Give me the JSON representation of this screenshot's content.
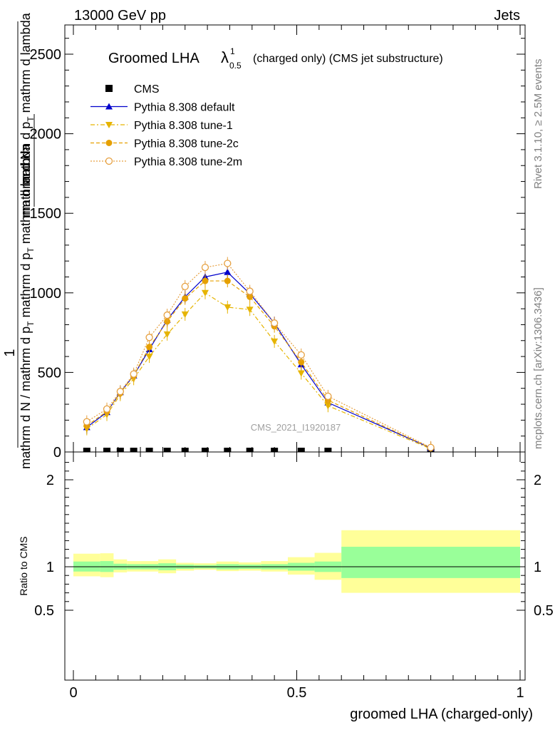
{
  "header": {
    "energy_label": "13000 GeV pp",
    "category_label": "Jets"
  },
  "side_labels": {
    "rivet": "Rivet 3.1.10, ≥ 2.5M events",
    "mcplots": "mcplots.cern.ch [arXiv:1306.3436]"
  },
  "chart_data": [
    {
      "type": "scatter",
      "title_prefix": "Groomed LHA",
      "title_lambda": "λ",
      "title_sup": "1",
      "title_sub": "0.5",
      "title_suffix": "(charged only) (CMS jet substructure)",
      "ylabel_parts": {
        "one": "1",
        "num_top": "mathrm d",
        "num_top2": "N",
        "den_top": "mathrm d p",
        "den_top_sub": "T",
        "den_top2": " mathrm d lambda",
        "num_bottom": "mathrm d N / mathrm d p",
        "num_bottom_sub": "T",
        "num_bottom2": " mathrm d p",
        "num_bottom_sub2": "T",
        "num_bottom3": " mathrm d lambda"
      },
      "watermark": "CMS_2021_I1920187",
      "xlim": [
        0,
        1
      ],
      "ylim": [
        0,
        2700
      ],
      "yticks": [
        0,
        500,
        1000,
        1500,
        2000,
        2500
      ],
      "yticks_labels": [
        "0",
        "500",
        "1000",
        "1500",
        "2000",
        "2500"
      ],
      "legend_position": "top-left",
      "x": [
        0.03,
        0.075,
        0.105,
        0.135,
        0.17,
        0.21,
        0.25,
        0.295,
        0.345,
        0.395,
        0.45,
        0.51,
        0.57,
        0.8
      ],
      "series": [
        {
          "name": "CMS",
          "color": "#000000",
          "marker": "square",
          "values": [
            0,
            0,
            0,
            0,
            0,
            0,
            0,
            0,
            0,
            0,
            0,
            0,
            0,
            0
          ]
        },
        {
          "name": "Pythia 8.308 default",
          "color": "#0000cc",
          "marker": "triangle-up",
          "line": "solid",
          "values": [
            155,
            250,
            375,
            480,
            645,
            830,
            975,
            1100,
            1130,
            995,
            810,
            550,
            310,
            25
          ]
        },
        {
          "name": "Pythia 8.308 tune-1",
          "color": "#e6b400",
          "marker": "triangle-down",
          "line": "dashdot",
          "values": [
            145,
            235,
            360,
            460,
            600,
            740,
            865,
            1000,
            910,
            895,
            695,
            495,
            290,
            20
          ]
        },
        {
          "name": "Pythia 8.308 tune-2c",
          "color": "#e6a000",
          "marker": "circle",
          "line": "dashed",
          "values": [
            165,
            255,
            370,
            480,
            660,
            820,
            965,
            1075,
            1075,
            975,
            790,
            565,
            325,
            25
          ]
        },
        {
          "name": "Pythia 8.308 tune-2m",
          "color": "#e6a040",
          "marker": "circle-open",
          "line": "dotted",
          "values": [
            190,
            270,
            380,
            490,
            720,
            860,
            1040,
            1160,
            1185,
            1010,
            810,
            610,
            350,
            28
          ]
        }
      ]
    },
    {
      "type": "area",
      "ylabel": "Ratio to CMS",
      "xlabel": "groomed LHA (charged-only)",
      "xlim": [
        0,
        1
      ],
      "ylim": [
        0.4,
        2.3
      ],
      "xticks": [
        0,
        0.5,
        1
      ],
      "xticks_labels": [
        "0",
        "0.5",
        "1"
      ],
      "yticks": [
        0.5,
        1,
        2
      ],
      "yticks_labels": [
        "0.5",
        "1",
        "2"
      ],
      "band_colors": {
        "inner": "#99ff99",
        "outer": "#ffff99"
      },
      "bins": [
        {
          "lo": 0.0,
          "hi": 0.06,
          "inner": [
            0.945,
            1.06
          ],
          "outer": [
            0.89,
            1.15
          ]
        },
        {
          "lo": 0.06,
          "hi": 0.09,
          "inner": [
            0.94,
            1.065
          ],
          "outer": [
            0.88,
            1.155
          ]
        },
        {
          "lo": 0.09,
          "hi": 0.12,
          "inner": [
            0.965,
            1.035
          ],
          "outer": [
            0.935,
            1.085
          ]
        },
        {
          "lo": 0.12,
          "hi": 0.15,
          "inner": [
            0.97,
            1.03
          ],
          "outer": [
            0.945,
            1.065
          ]
        },
        {
          "lo": 0.15,
          "hi": 0.19,
          "inner": [
            0.97,
            1.03
          ],
          "outer": [
            0.945,
            1.065
          ]
        },
        {
          "lo": 0.19,
          "hi": 0.23,
          "inner": [
            0.96,
            1.04
          ],
          "outer": [
            0.925,
            1.085
          ]
        },
        {
          "lo": 0.23,
          "hi": 0.27,
          "inner": [
            0.975,
            1.025
          ],
          "outer": [
            0.955,
            1.045
          ]
        },
        {
          "lo": 0.27,
          "hi": 0.32,
          "inner": [
            0.98,
            1.02
          ],
          "outer": [
            0.965,
            1.04
          ]
        },
        {
          "lo": 0.32,
          "hi": 0.37,
          "inner": [
            0.97,
            1.03
          ],
          "outer": [
            0.95,
            1.06
          ]
        },
        {
          "lo": 0.37,
          "hi": 0.42,
          "inner": [
            0.975,
            1.025
          ],
          "outer": [
            0.955,
            1.05
          ]
        },
        {
          "lo": 0.42,
          "hi": 0.48,
          "inner": [
            0.97,
            1.03
          ],
          "outer": [
            0.945,
            1.065
          ]
        },
        {
          "lo": 0.48,
          "hi": 0.54,
          "inner": [
            0.955,
            1.045
          ],
          "outer": [
            0.91,
            1.11
          ]
        },
        {
          "lo": 0.54,
          "hi": 0.6,
          "inner": [
            0.94,
            1.06
          ],
          "outer": [
            0.85,
            1.16
          ]
        },
        {
          "lo": 0.6,
          "hi": 1.0,
          "inner": [
            0.87,
            1.23
          ],
          "outer": [
            0.7,
            1.42
          ]
        }
      ]
    }
  ]
}
